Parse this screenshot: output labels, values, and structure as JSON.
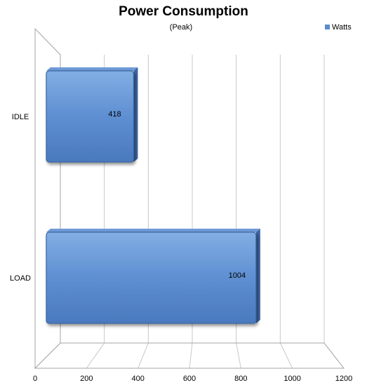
{
  "chart_data": {
    "type": "bar",
    "orientation": "horizontal",
    "title": "Power Consumption",
    "subtitle": "(Peak)",
    "categories": [
      "IDLE",
      "LOAD"
    ],
    "series": [
      {
        "name": "Watts",
        "values": [
          418,
          1004
        ]
      }
    ],
    "data_labels": [
      "418",
      "1004"
    ],
    "xlim": [
      0,
      1200
    ],
    "xticks": [
      0,
      200,
      400,
      600,
      800,
      1000,
      1200
    ],
    "xtick_labels": [
      "0",
      "200",
      "400",
      "600",
      "800",
      "1000",
      "1200"
    ],
    "grid": "vertical",
    "legend_position": "top-right",
    "style": "3d"
  },
  "colors": {
    "bar_light": "#6d9bd7",
    "bar_mid": "#5a8ad0",
    "bar_dark": "#3c66a3",
    "gridline": "#c8c8c8",
    "axis": "#a6a6a6"
  }
}
